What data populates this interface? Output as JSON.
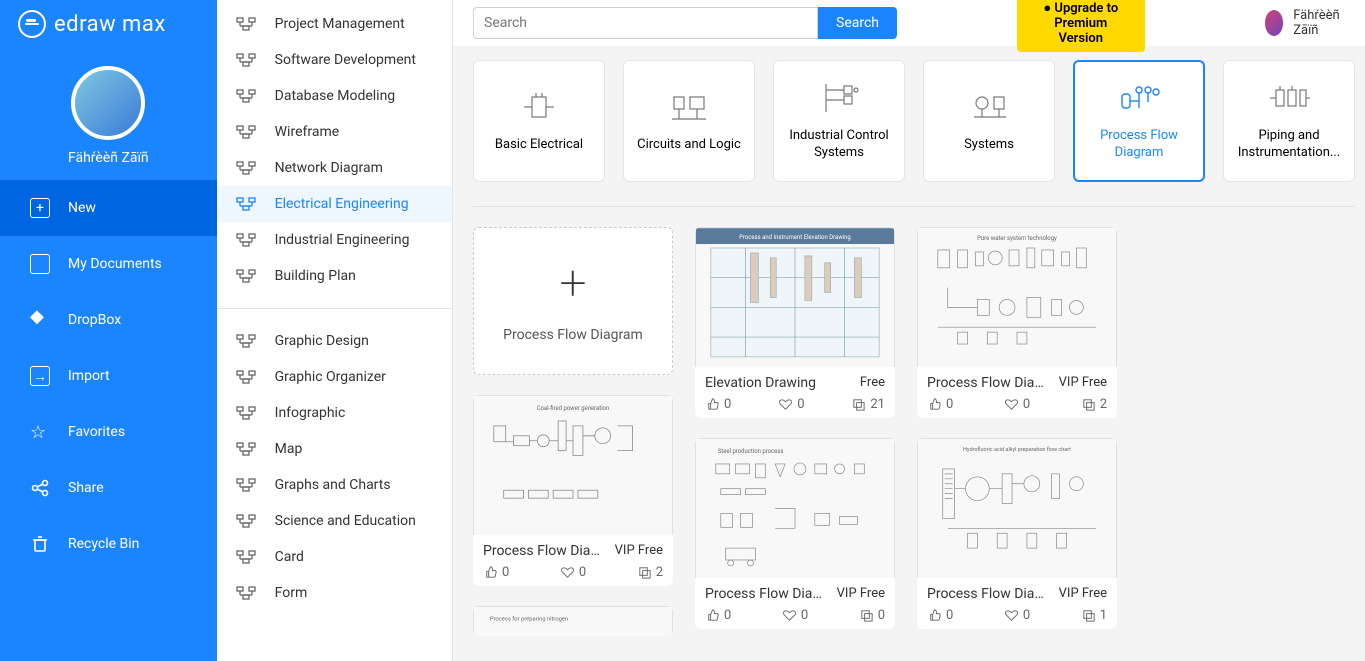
{
  "app": {
    "name": "edraw max"
  },
  "user": {
    "name": "Fähŕèèñ Zāïñ"
  },
  "topbar": {
    "search_placeholder": "Search",
    "search_button": "Search",
    "upgrade_button": "● Upgrade to Premium Version"
  },
  "left_nav": [
    {
      "key": "new",
      "label": "New",
      "active": true
    },
    {
      "key": "mydocs",
      "label": "My Documents",
      "active": false
    },
    {
      "key": "dropbox",
      "label": "DropBox",
      "active": false
    },
    {
      "key": "import",
      "label": "Import",
      "active": false
    },
    {
      "key": "favorites",
      "label": "Favorites",
      "active": false
    },
    {
      "key": "share",
      "label": "Share",
      "active": false
    },
    {
      "key": "recycle",
      "label": "Recycle Bin",
      "active": false
    }
  ],
  "categories_top": [
    {
      "label": "Project Management"
    },
    {
      "label": "Software Development"
    },
    {
      "label": "Database Modeling"
    },
    {
      "label": "Wireframe"
    },
    {
      "label": "Network Diagram"
    },
    {
      "label": "Electrical Engineering",
      "selected": true
    },
    {
      "label": "Industrial Engineering"
    },
    {
      "label": "Building Plan"
    }
  ],
  "categories_bottom": [
    {
      "label": "Graphic Design"
    },
    {
      "label": "Graphic Organizer"
    },
    {
      "label": "Infographic"
    },
    {
      "label": "Map"
    },
    {
      "label": "Graphs and Charts"
    },
    {
      "label": "Science and Education"
    },
    {
      "label": "Card"
    },
    {
      "label": "Form"
    }
  ],
  "subcategories": [
    {
      "label": "Basic Electrical"
    },
    {
      "label": "Circuits and Logic"
    },
    {
      "label": "Industrial Control Systems"
    },
    {
      "label": "Systems"
    },
    {
      "label": "Process Flow Diagram",
      "selected": true
    },
    {
      "label": "Piping and Instrumentation..."
    }
  ],
  "new_template_label": "Process Flow Diagram",
  "templates": {
    "t1": {
      "title": "Process Flow Diag...",
      "price": "VIP Free",
      "likes": 0,
      "hearts": 0,
      "copies": 2,
      "caption": "Coal-fired power generation"
    },
    "t2": {
      "title": "Elevation Drawing",
      "price": "Free",
      "likes": 0,
      "hearts": 0,
      "copies": 21,
      "caption": "Process and Instrument Elevation Drawing"
    },
    "t3": {
      "title": "Process Flow Diag...",
      "price": "VIP Free",
      "likes": 0,
      "hearts": 0,
      "copies": 0,
      "caption": "Steel production process"
    },
    "t4": {
      "title": "Process Flow Diag...",
      "price": "VIP Free",
      "likes": 0,
      "hearts": 0,
      "copies": 2,
      "caption": "Pure water system technology"
    },
    "t5": {
      "title": "Process Flow Diag...",
      "price": "VIP Free",
      "likes": 0,
      "hearts": 0,
      "copies": 1,
      "caption": "Hydrofluoric acid alkyl preparation flow chart"
    }
  },
  "colors": {
    "brand": "#1a85ff",
    "brand_dark": "#0065e0",
    "upgrade_bg": "#ffd900",
    "border": "#e5e5e5"
  }
}
